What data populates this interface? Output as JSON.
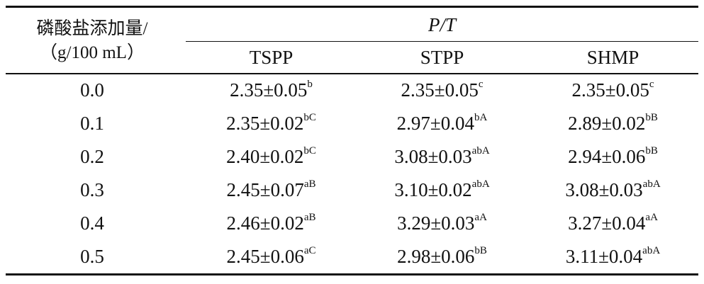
{
  "table": {
    "stub_header_line1": "磷酸盐添加量/",
    "stub_header_line2": "（g/100 mL）",
    "group_header": "P/T",
    "columns": [
      "TSPP",
      "STPP",
      "SHMP"
    ],
    "rows": [
      {
        "dose": "0.0",
        "cells": [
          {
            "v": "2.35±0.05",
            "s": "b"
          },
          {
            "v": "2.35±0.05",
            "s": "c"
          },
          {
            "v": "2.35±0.05",
            "s": "c"
          }
        ]
      },
      {
        "dose": "0.1",
        "cells": [
          {
            "v": "2.35±0.02",
            "s": "bC"
          },
          {
            "v": "2.97±0.04",
            "s": "bA"
          },
          {
            "v": "2.89±0.02",
            "s": "bB"
          }
        ]
      },
      {
        "dose": "0.2",
        "cells": [
          {
            "v": "2.40±0.02",
            "s": "bC"
          },
          {
            "v": "3.08±0.03",
            "s": "abA"
          },
          {
            "v": "2.94±0.06",
            "s": "bB"
          }
        ]
      },
      {
        "dose": "0.3",
        "cells": [
          {
            "v": "2.45±0.07",
            "s": "aB"
          },
          {
            "v": "3.10±0.02",
            "s": "abA"
          },
          {
            "v": "3.08±0.03",
            "s": "abA"
          }
        ]
      },
      {
        "dose": "0.4",
        "cells": [
          {
            "v": "2.46±0.02",
            "s": "aB"
          },
          {
            "v": "3.29±0.03",
            "s": "aA"
          },
          {
            "v": "3.27±0.04",
            "s": "aA"
          }
        ]
      },
      {
        "dose": "0.5",
        "cells": [
          {
            "v": "2.45±0.06",
            "s": "aC"
          },
          {
            "v": "2.98±0.06",
            "s": "bB"
          },
          {
            "v": "3.11±0.04",
            "s": "abA"
          }
        ]
      }
    ]
  }
}
